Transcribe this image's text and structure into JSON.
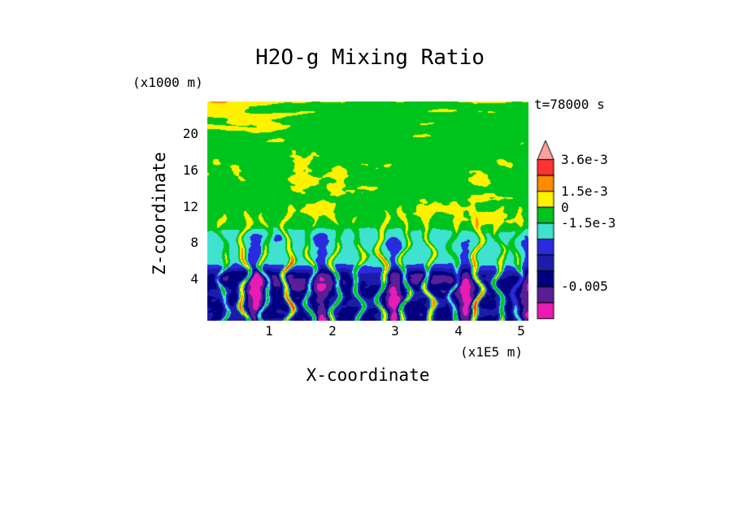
{
  "chart_data": {
    "type": "heatmap",
    "title": "H2O-g Mixing Ratio",
    "time_label": "t=78000 s",
    "xlabel": "X-coordinate",
    "x_unit": "(x1E5 m)",
    "ylabel": "Z-coordinate",
    "y_unit": "(x1000 m)",
    "x_ticks": [
      "1",
      "2",
      "3",
      "4",
      "5"
    ],
    "y_ticks": [
      "20",
      "16",
      "12",
      "8",
      "4"
    ],
    "xlim": [
      0,
      5.12
    ],
    "ylim": [
      0,
      24
    ],
    "legend_position": "right",
    "grid": false,
    "colorbar_labels": [
      "3.6e-3",
      "1.5e-3",
      "0",
      "-1.5e-3",
      "-0.005"
    ],
    "colorbar_label_levels": [
      0.0036,
      0.0015,
      0,
      -0.0015,
      -0.005
    ],
    "levels": [
      0.0036,
      0.00255,
      0.0015,
      0.0,
      -0.0015,
      -0.002375,
      -0.00325,
      -0.004125,
      -0.005,
      -0.005875
    ],
    "palette": [
      "#FFA0A0",
      "#FF3232",
      "#FF8C00",
      "#FFF200",
      "#00C41E",
      "#3FE2CF",
      "#2A2ADF",
      "#1C1CA8",
      "#000080",
      "#5A1E96",
      "#E81CB4"
    ],
    "field": {
      "comment": "procedural approximation of the filled-contour field: green background aloft with yellow positive anomalies and horizontal banding near domain top, a cyan band near z=5-8 km, dark blue/navy boundary layer with purple/magenta minima below z=4 km, and narrow warm (orange/red) plumes rising from the surface",
      "bases": {
        "deep": -4.4,
        "band": -2.0,
        "upper": -0.45
      },
      "amp_big": {
        "deep": 1.5,
        "band": 0.55,
        "upper": 0.95
      },
      "amp_small": {
        "deep": 0.85,
        "band": 0.3,
        "upper": 0.45
      },
      "zone_v": [
        0.2,
        0.27,
        0.38,
        0.46
      ],
      "stripe_start": 0.74,
      "stripe_freq": 115,
      "stripe_amp": 1.15,
      "plume_x": [
        0.05,
        0.115,
        0.18,
        0.25,
        0.32,
        0.4,
        0.47,
        0.545,
        0.615,
        0.69,
        0.77,
        0.84,
        0.91,
        0.965
      ],
      "plume_s": [
        0.55,
        0.9,
        0.65,
        1.0,
        0.6,
        0.8,
        0.5,
        0.95,
        0.7,
        0.85,
        0.55,
        1.0,
        0.75,
        0.5
      ],
      "plume_amp": 9.0,
      "plume_sigma": 0.0065,
      "plume_reach": 0.55,
      "dark_amp": 2.3,
      "dark_sigma": 0.017,
      "dark_reach": 0.46,
      "blob_amp": 1.3
    }
  }
}
